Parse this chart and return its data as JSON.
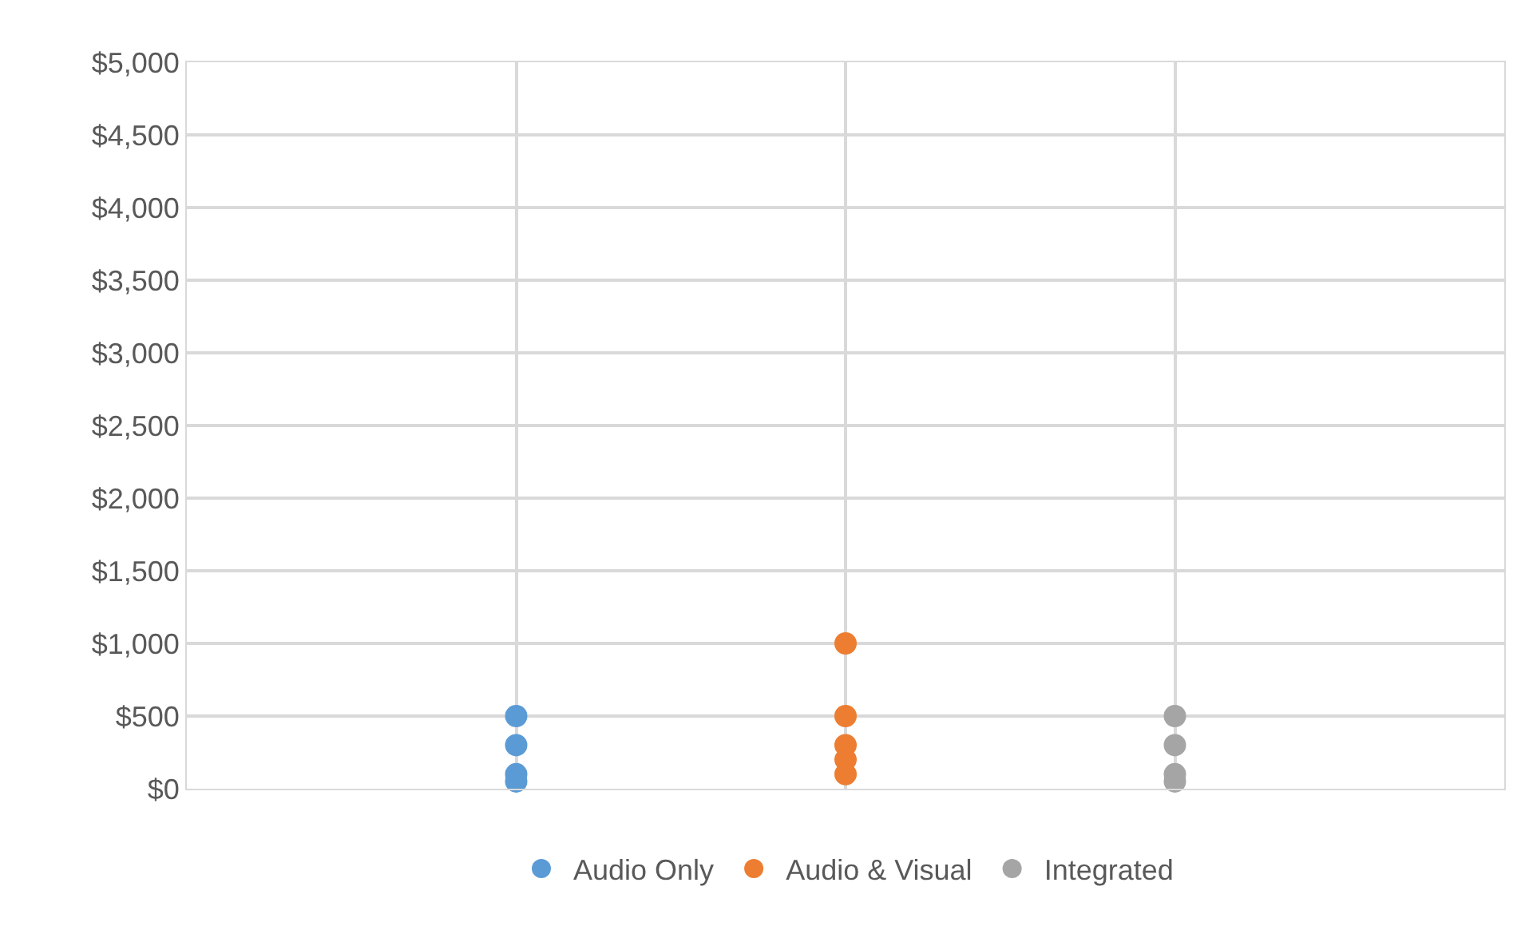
{
  "chart_data": {
    "type": "scatter",
    "categories": [
      null,
      null,
      null
    ],
    "series": [
      {
        "name": "Audio Only",
        "color": "#5b9bd5",
        "values": [
          500,
          null,
          null
        ]
      },
      {
        "color": "#5b9bd5",
        "values": [
          300,
          null,
          null
        ]
      },
      {
        "color": "#5b9bd5",
        "values": [
          100,
          null,
          null
        ]
      },
      {
        "color": "#5b9bd5",
        "values": [
          50,
          null,
          null
        ]
      },
      {
        "name": "Audio & Visual",
        "color": "#ed7d31",
        "values": [
          null,
          1000,
          null
        ]
      },
      {
        "color": "#ed7d31",
        "values": [
          null,
          500,
          null
        ]
      },
      {
        "color": "#ed7d31",
        "values": [
          null,
          300,
          null
        ]
      },
      {
        "color": "#ed7d31",
        "values": [
          null,
          200,
          null
        ]
      },
      {
        "color": "#ed7d31",
        "values": [
          null,
          100,
          null
        ]
      },
      {
        "name": "Integrated",
        "color": "#a5a5a5",
        "values": [
          null,
          null,
          500
        ]
      },
      {
        "color": "#a5a5a5",
        "values": [
          null,
          null,
          300
        ]
      },
      {
        "color": "#a5a5a5",
        "values": [
          null,
          null,
          100
        ]
      },
      {
        "color": "#a5a5a5",
        "values": [
          null,
          null,
          50
        ]
      }
    ],
    "ylim": [
      0,
      5000
    ],
    "yticks": [
      {
        "value": 0,
        "label": "$0"
      },
      {
        "value": 500,
        "label": "$500"
      },
      {
        "value": 1000,
        "label": "$1,000"
      },
      {
        "value": 1500,
        "label": "$1,500"
      },
      {
        "value": 2000,
        "label": "$2,000"
      },
      {
        "value": 2500,
        "label": "$2,500"
      },
      {
        "value": 3000,
        "label": "$3,000"
      },
      {
        "value": 3500,
        "label": "$3,500"
      },
      {
        "value": 4000,
        "label": "$4,000"
      },
      {
        "value": 4500,
        "label": "$4,500"
      },
      {
        "value": 5000,
        "label": "$5,000"
      }
    ],
    "tick_labels": "y",
    "grid": true,
    "legend": "bottom",
    "marker": "circle"
  }
}
